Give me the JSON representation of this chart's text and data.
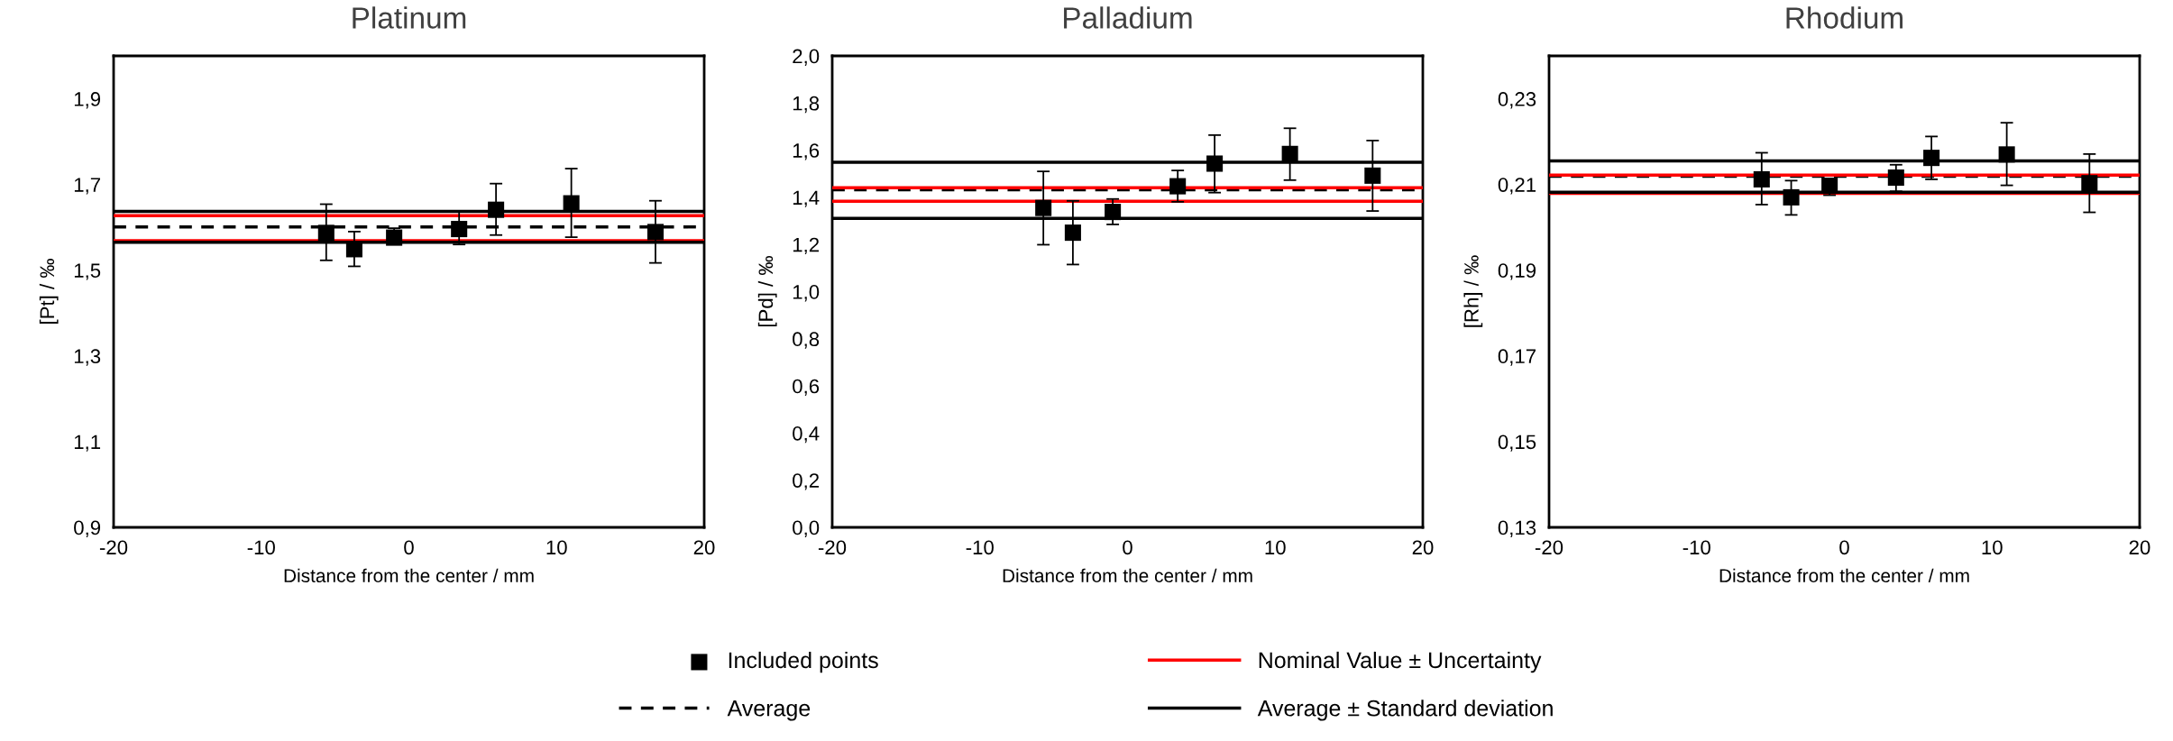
{
  "chart_data": [
    {
      "type": "scatter",
      "title": "Platinum",
      "xlabel": "Distance from the center / mm",
      "ylabel": "[Pt] / ‰",
      "legend": "bottom",
      "marker": "square",
      "xlim": [
        -20,
        20
      ],
      "xticks": [
        -20,
        -10,
        0,
        10,
        20
      ],
      "ylim": [
        0.9,
        2.0
      ],
      "yticks": [
        {
          "value": 0.9,
          "label": "0,9"
        },
        {
          "value": 1.1,
          "label": "1,1"
        },
        {
          "value": 1.3,
          "label": "1,3"
        },
        {
          "value": 1.5,
          "label": "1,5"
        },
        {
          "value": 1.7,
          "label": "1,7"
        },
        {
          "value": 1.9,
          "label": "1,9"
        }
      ],
      "series": [
        {
          "name": "Included points",
          "color": "#000000",
          "x": [
            -5.6,
            -3.7,
            -1.0,
            3.4,
            5.9,
            11.0,
            16.7
          ],
          "values": [
            1.587,
            1.549,
            1.576,
            1.596,
            1.641,
            1.656,
            1.589
          ],
          "errors": [
            [
              1.523,
              1.654
            ],
            [
              1.509,
              1.59
            ],
            [
              1.561,
              1.598
            ],
            [
              1.56,
              1.636
            ],
            [
              1.582,
              1.702
            ],
            [
              1.577,
              1.737
            ],
            [
              1.517,
              1.662
            ]
          ]
        }
      ],
      "ref_lines": [
        {
          "axis": "y",
          "value": 1.601,
          "label": "Average",
          "color": "#000000",
          "line_style": "dashed"
        },
        {
          "axis": "y",
          "value": 1.627,
          "label": "Nominal Value ± Uncertainty",
          "color": "#ff0000",
          "line_style": "solid"
        },
        {
          "axis": "y",
          "value": 1.569,
          "color": "#ff0000",
          "line_style": "solid"
        },
        {
          "axis": "y",
          "value": 1.637,
          "label": "Average ± Standard deviation",
          "color": "#000000",
          "line_style": "solid"
        },
        {
          "axis": "y",
          "value": 1.565,
          "color": "#000000",
          "line_style": "solid"
        }
      ]
    },
    {
      "type": "scatter",
      "title": "Palladium",
      "xlabel": "Distance from the center / mm",
      "ylabel": "[Pd] / ‰",
      "marker": "square",
      "xlim": [
        -20,
        20
      ],
      "xticks": [
        -20,
        -10,
        0,
        10,
        20
      ],
      "ylim": [
        0.0,
        2.0
      ],
      "yticks": [
        {
          "value": 0.0,
          "label": "0,0"
        },
        {
          "value": 0.2,
          "label": "0,2"
        },
        {
          "value": 0.4,
          "label": "0,4"
        },
        {
          "value": 0.6,
          "label": "0,6"
        },
        {
          "value": 0.8,
          "label": "0,8"
        },
        {
          "value": 1.0,
          "label": "1,0"
        },
        {
          "value": 1.2,
          "label": "1,2"
        },
        {
          "value": 1.4,
          "label": "1,4"
        },
        {
          "value": 1.6,
          "label": "1,6"
        },
        {
          "value": 1.8,
          "label": "1,8"
        },
        {
          "value": 2.0,
          "label": "2,0"
        }
      ],
      "series": [
        {
          "color": "#000000",
          "x": [
            -5.7,
            -3.7,
            -1.0,
            3.4,
            5.9,
            11.0,
            16.6
          ],
          "values": [
            1.355,
            1.25,
            1.338,
            1.447,
            1.543,
            1.584,
            1.492
          ],
          "errors": [
            [
              1.199,
              1.51
            ],
            [
              1.115,
              1.385
            ],
            [
              1.285,
              1.393
            ],
            [
              1.381,
              1.514
            ],
            [
              1.42,
              1.664
            ],
            [
              1.473,
              1.693
            ],
            [
              1.342,
              1.641
            ]
          ]
        }
      ],
      "ref_lines": [
        {
          "axis": "y",
          "value": 1.432,
          "color": "#000000",
          "line_style": "dashed"
        },
        {
          "axis": "y",
          "value": 1.441,
          "color": "#ff0000",
          "line_style": "solid"
        },
        {
          "axis": "y",
          "value": 1.383,
          "color": "#ff0000",
          "line_style": "solid"
        },
        {
          "axis": "y",
          "value": 1.549,
          "color": "#000000",
          "line_style": "solid"
        },
        {
          "axis": "y",
          "value": 1.311,
          "color": "#000000",
          "line_style": "solid"
        }
      ]
    },
    {
      "type": "scatter",
      "title": "Rhodium",
      "xlabel": "Distance from the center / mm",
      "ylabel": "[Rh] / ‰",
      "marker": "square",
      "xlim": [
        -20,
        20
      ],
      "xticks": [
        -20,
        -10,
        0,
        10,
        20
      ],
      "ylim": [
        0.13,
        0.24
      ],
      "yticks": [
        {
          "value": 0.13,
          "label": "0,13"
        },
        {
          "value": 0.15,
          "label": "0,15"
        },
        {
          "value": 0.17,
          "label": "0,17"
        },
        {
          "value": 0.19,
          "label": "0,19"
        },
        {
          "value": 0.21,
          "label": "0,21"
        },
        {
          "value": 0.23,
          "label": "0,23"
        }
      ],
      "series": [
        {
          "color": "#000000",
          "x": [
            -5.6,
            -3.6,
            -1.0,
            3.5,
            5.9,
            11.0,
            16.6
          ],
          "values": [
            0.2112,
            0.207,
            0.2097,
            0.2116,
            0.2162,
            0.217,
            0.2103
          ],
          "errors": [
            [
              0.2053,
              0.2174
            ],
            [
              0.2029,
              0.2109
            ],
            [
              0.2075,
              0.2111
            ],
            [
              0.2084,
              0.2146
            ],
            [
              0.2112,
              0.2212
            ],
            [
              0.2098,
              0.2244
            ],
            [
              0.2035,
              0.2171
            ]
          ]
        }
      ],
      "ref_lines": [
        {
          "axis": "y",
          "value": 0.2119,
          "color": "#000000",
          "line_style": "dashed"
        },
        {
          "axis": "y",
          "value": 0.2122,
          "color": "#ff0000",
          "line_style": "solid"
        },
        {
          "axis": "y",
          "value": 0.2079,
          "color": "#ff0000",
          "line_style": "solid"
        },
        {
          "axis": "y",
          "value": 0.2155,
          "color": "#000000",
          "line_style": "solid"
        },
        {
          "axis": "y",
          "value": 0.2082,
          "color": "#000000",
          "line_style": "solid"
        }
      ]
    }
  ]
}
